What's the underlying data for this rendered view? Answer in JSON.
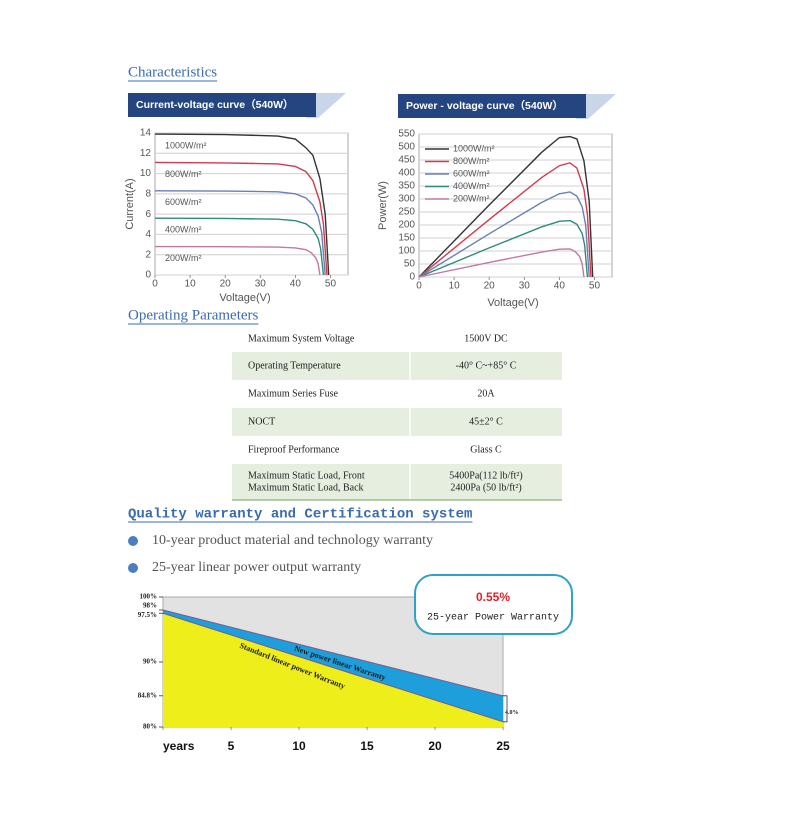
{
  "heading": "Characteristics",
  "chart_data": [
    {
      "type": "line",
      "title": "Current-voltage curve（540W）",
      "xlabel": "Voltage(V)",
      "ylabel": "Current(A)",
      "xlim": [
        0,
        55
      ],
      "xticks": [
        0,
        10,
        20,
        30,
        40,
        50
      ],
      "ylim": [
        0,
        14
      ],
      "yticks": [
        0,
        2,
        4,
        6,
        8,
        10,
        12,
        14
      ],
      "grid": true,
      "legend": "inline",
      "series": [
        {
          "name": "1000W/m²",
          "color": "#333333",
          "x": [
            0,
            20,
            35,
            40,
            43,
            45,
            47,
            48.5,
            49.5
          ],
          "values": [
            13.9,
            13.85,
            13.7,
            13.4,
            12.55,
            11.8,
            9.5,
            6,
            0
          ]
        },
        {
          "name": "800W/m²",
          "color": "#d23a4f",
          "x": [
            0,
            20,
            35,
            40,
            43,
            45,
            47,
            48,
            49
          ],
          "values": [
            11.1,
            11.05,
            10.95,
            10.7,
            10.2,
            9.3,
            7.2,
            5,
            0
          ]
        },
        {
          "name": "600W/m²",
          "color": "#6b7fb3",
          "x": [
            0,
            20,
            35,
            40,
            43,
            45,
            46.5,
            47.5,
            48.5
          ],
          "values": [
            8.3,
            8.28,
            8.2,
            8.0,
            7.6,
            6.9,
            5.8,
            4.2,
            0
          ]
        },
        {
          "name": "400W/m²",
          "color": "#2e8b7a",
          "x": [
            0,
            20,
            35,
            40,
            43,
            45,
            46.5,
            47.2,
            48
          ],
          "values": [
            5.6,
            5.58,
            5.5,
            5.35,
            5.05,
            4.5,
            3.6,
            2.6,
            0
          ]
        },
        {
          "name": "200W/m²",
          "color": "#c07aa0",
          "x": [
            0,
            20,
            35,
            40,
            43,
            44.5,
            45.8,
            46.5,
            47
          ],
          "values": [
            2.8,
            2.79,
            2.75,
            2.67,
            2.5,
            2.2,
            1.7,
            1.1,
            0
          ]
        }
      ]
    },
    {
      "type": "line",
      "title": "Power - voltage curve（540W）",
      "xlabel": "Voltage(V)",
      "ylabel": "Power(W)",
      "xlim": [
        0,
        55
      ],
      "xticks": [
        0,
        10,
        20,
        30,
        40,
        50
      ],
      "ylim": [
        0,
        550
      ],
      "yticks": [
        0,
        50,
        100,
        150,
        200,
        250,
        300,
        350,
        400,
        450,
        500,
        550
      ],
      "grid": true,
      "legend": "upper left",
      "series": [
        {
          "name": "1000W/m²",
          "color": "#333333",
          "x": [
            0,
            20,
            35,
            40,
            43,
            45,
            47,
            48.5,
            49.5
          ],
          "values": [
            0,
            277,
            480,
            536,
            540,
            531,
            447,
            291,
            0
          ]
        },
        {
          "name": "800W/m²",
          "color": "#d23a4f",
          "x": [
            0,
            20,
            35,
            40,
            43,
            45,
            47,
            48,
            49
          ],
          "values": [
            0,
            221,
            383,
            428,
            439,
            419,
            338,
            240,
            0
          ]
        },
        {
          "name": "600W/m²",
          "color": "#6b7fb3",
          "x": [
            0,
            20,
            35,
            40,
            43,
            45,
            46.5,
            47.5,
            48.5
          ],
          "values": [
            0,
            166,
            287,
            320,
            327,
            311,
            270,
            200,
            0
          ]
        },
        {
          "name": "400W/m²",
          "color": "#2e8b7a",
          "x": [
            0,
            20,
            35,
            40,
            43,
            45,
            46.5,
            47.2,
            48
          ],
          "values": [
            0,
            112,
            193,
            214,
            217,
            203,
            167,
            123,
            0
          ]
        },
        {
          "name": "200W/m²",
          "color": "#c07aa0",
          "x": [
            0,
            20,
            35,
            40,
            43,
            44.5,
            45.8,
            46.5,
            47
          ],
          "values": [
            0,
            56,
            96,
            107,
            108,
            98,
            78,
            51,
            0
          ]
        }
      ]
    },
    {
      "type": "area",
      "xlim": [
        0,
        25
      ],
      "xticks": [
        {
          "value": 0,
          "label": "years"
        },
        5,
        10,
        15,
        20,
        25
      ],
      "ylim": [
        80,
        100
      ],
      "yticks": [
        {
          "value": 100,
          "label": "100%"
        },
        {
          "value": 98,
          "label": "98%"
        },
        {
          "value": 97.5,
          "label": "97.5%"
        },
        {
          "value": 90,
          "label": "90%"
        },
        {
          "value": 84.8,
          "label": "84.8%"
        },
        {
          "value": 80,
          "label": "80%"
        }
      ],
      "grid": false,
      "series": [
        {
          "name": "New power linear Warranty",
          "color": "#1e9fdc",
          "x": [
            0,
            25
          ],
          "values": [
            98,
            84.8
          ]
        },
        {
          "name": "Standard linear power Warranty",
          "color": "#eeee1a",
          "x": [
            0,
            25
          ],
          "values": [
            97.5,
            80.8
          ]
        }
      ],
      "annotations": [
        "4.0%"
      ],
      "callout": {
        "title": "0.55%",
        "text": "25-year Power Warranty"
      }
    }
  ],
  "operating_parameters": {
    "title": "Operating Parameters",
    "rows": [
      [
        "Maximum System Voltage",
        "1500V DC"
      ],
      [
        "Operating Temperature",
        "-40° C~+85° C"
      ],
      [
        "Maximum Series Fuse",
        "20A"
      ],
      [
        "NOCT",
        "45±2° C"
      ],
      [
        "Fireproof Performance",
        "Glass C"
      ],
      [
        [
          "Maximum Static Load, Front",
          "Maximum Static Load, Back"
        ],
        [
          "5400Pa(112 lb/ft²)",
          "2400Pa (50 lb/ft²)"
        ]
      ]
    ]
  },
  "warranty_section": {
    "title": "Quality warranty and Certification system",
    "bullets": [
      "10-year product material and technology warranty",
      "25-year linear power output warranty"
    ]
  }
}
